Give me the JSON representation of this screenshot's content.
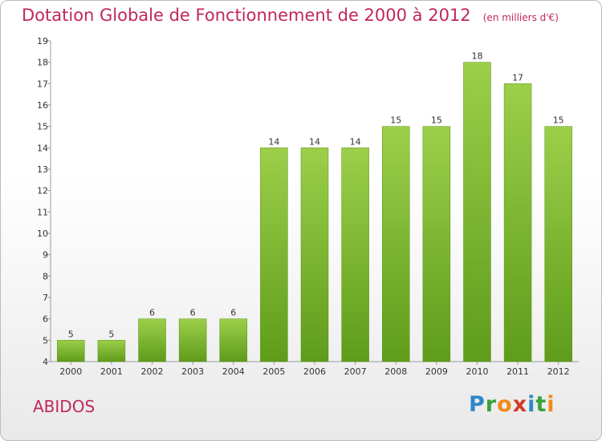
{
  "header": {
    "title": "Dotation Globale de Fonctionnement de 2000 à 2012",
    "subtitle": "(en milliers d'€)"
  },
  "footer": {
    "commune": "ABIDOS",
    "logo_text": "Proxiti",
    "logo_letters": [
      "P",
      "r",
      "o",
      "x",
      "i",
      "t",
      "i"
    ],
    "logo_colors": [
      "#2e88c8",
      "#3aa23a",
      "#f08a1a",
      "#d23b2a",
      "#2e88c8",
      "#3aa23a",
      "#f08a1a"
    ]
  },
  "chart_data": {
    "type": "bar",
    "title": "Dotation Globale de Fonctionnement de 2000 à 2012",
    "subtitle": "(en milliers d'€)",
    "categories": [
      "2000",
      "2001",
      "2002",
      "2003",
      "2004",
      "2005",
      "2006",
      "2007",
      "2008",
      "2009",
      "2010",
      "2011",
      "2012"
    ],
    "values": [
      5,
      5,
      6,
      6,
      6,
      14,
      14,
      14,
      15,
      15,
      18,
      17,
      15
    ],
    "ylim": [
      4,
      19
    ],
    "yticks": [
      4,
      5,
      6,
      7,
      8,
      9,
      10,
      11,
      12,
      13,
      14,
      15,
      16,
      17,
      18,
      19
    ],
    "xlabel": "",
    "ylabel": "",
    "grid": false,
    "bar_color_top": "#9ccf4a",
    "bar_color_bottom": "#5e9c1a"
  }
}
